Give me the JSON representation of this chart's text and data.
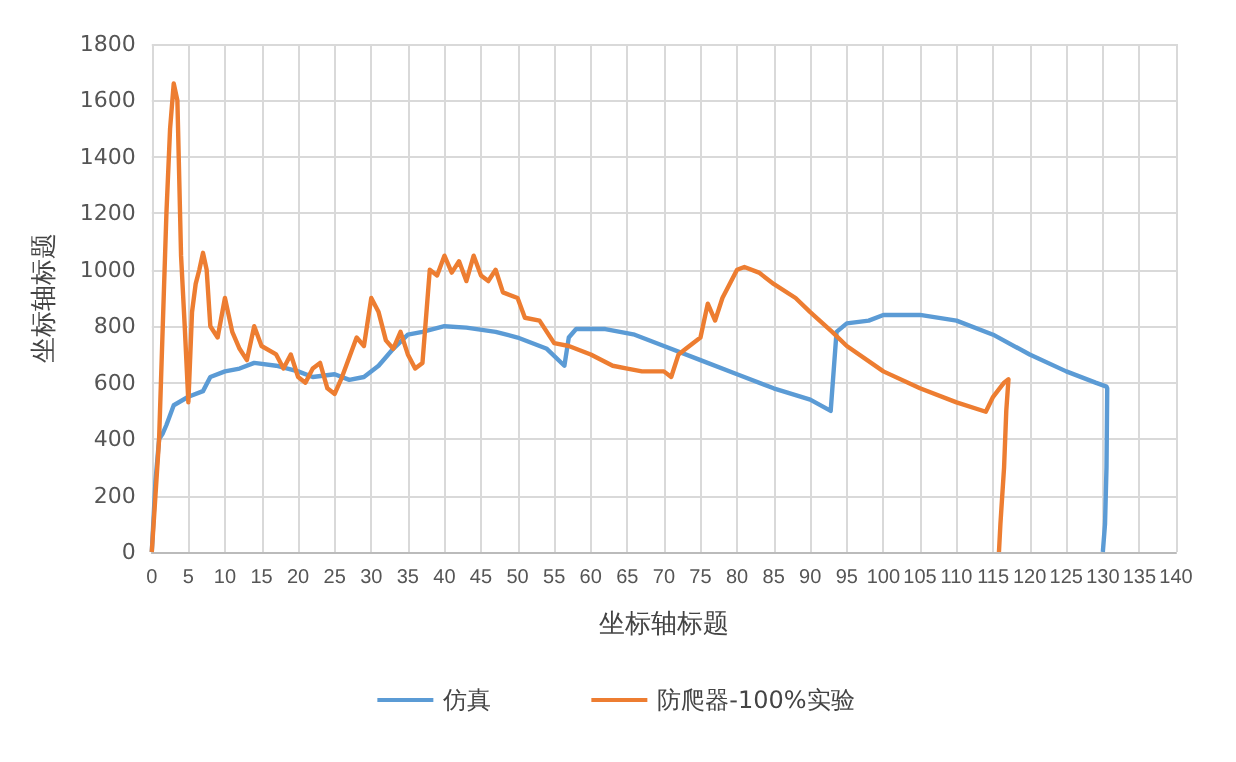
{
  "chart_data": {
    "type": "line",
    "xlabel": "坐标轴标题",
    "ylabel": "坐标轴标题",
    "xlim": [
      0,
      140
    ],
    "xticks": [
      0,
      5,
      10,
      15,
      20,
      25,
      30,
      35,
      40,
      45,
      50,
      55,
      60,
      65,
      70,
      75,
      80,
      85,
      90,
      95,
      100,
      105,
      110,
      115,
      120,
      125,
      130,
      135,
      140
    ],
    "ylim": [
      0,
      1800
    ],
    "yticks": [
      0,
      200,
      400,
      600,
      800,
      1000,
      1200,
      1400,
      1600,
      1800
    ],
    "grid": true,
    "legend": "bottom",
    "marker": "none",
    "line_style": "solid",
    "series": [
      {
        "name": "仿真",
        "color": "#5b9bd5",
        "x": [
          0,
          0.5,
          1,
          1.5,
          2,
          3,
          5,
          7,
          8,
          10,
          12,
          14,
          17,
          20,
          22,
          25,
          27,
          29,
          31,
          33,
          35,
          37,
          40,
          43,
          47,
          50,
          54,
          56.4,
          57,
          58,
          62,
          66,
          70,
          75,
          80,
          85,
          90,
          92.8,
          93.6,
          95,
          98,
          100,
          105,
          110,
          115,
          120,
          125,
          129,
          130.5,
          130.6,
          130.5,
          130.3,
          130
        ],
        "values": [
          0,
          250,
          400,
          420,
          450,
          520,
          550,
          570,
          620,
          640,
          650,
          670,
          660,
          640,
          620,
          630,
          610,
          620,
          660,
          720,
          770,
          780,
          800,
          795,
          780,
          760,
          720,
          660,
          760,
          790,
          790,
          770,
          730,
          680,
          630,
          580,
          540,
          500,
          780,
          810,
          820,
          840,
          840,
          820,
          770,
          700,
          640,
          600,
          586,
          580,
          300,
          100,
          0
        ]
      },
      {
        "name": "防爬器-100%实验",
        "color": "#ed7d31",
        "x": [
          0,
          1,
          1.5,
          2,
          2.5,
          3,
          3.5,
          4,
          4.5,
          5,
          5.5,
          6,
          6.5,
          7,
          7.5,
          8,
          9,
          10,
          11,
          12,
          13,
          14,
          15,
          17,
          18,
          19,
          20,
          21,
          22,
          23,
          24,
          25,
          26,
          28,
          29,
          30,
          31,
          32,
          33,
          34,
          35,
          36,
          37,
          38,
          39,
          40,
          41,
          42,
          43,
          44,
          45,
          46,
          47,
          48,
          50,
          51,
          53,
          55,
          57,
          60,
          63,
          65,
          67,
          70,
          71,
          72,
          73,
          75,
          76,
          77,
          78,
          80,
          81,
          83,
          85,
          88,
          90,
          93,
          95,
          100,
          105,
          110,
          114,
          115,
          116.5,
          117.1,
          116.8,
          116.5,
          116,
          115.8
        ],
        "values": [
          0,
          400,
          800,
          1200,
          1500,
          1660,
          1600,
          1050,
          800,
          530,
          850,
          950,
          1000,
          1060,
          1000,
          800,
          760,
          900,
          780,
          720,
          680,
          800,
          730,
          700,
          650,
          700,
          620,
          600,
          650,
          670,
          580,
          560,
          620,
          760,
          730,
          900,
          850,
          750,
          720,
          780,
          700,
          650,
          670,
          1000,
          980,
          1050,
          990,
          1030,
          960,
          1050,
          980,
          960,
          1000,
          920,
          900,
          830,
          820,
          740,
          730,
          700,
          660,
          650,
          640,
          640,
          620,
          700,
          720,
          760,
          880,
          820,
          900,
          1000,
          1010,
          990,
          950,
          900,
          850,
          780,
          730,
          640,
          580,
          530,
          497,
          550,
          600,
          612,
          500,
          300,
          100,
          0
        ]
      }
    ]
  }
}
